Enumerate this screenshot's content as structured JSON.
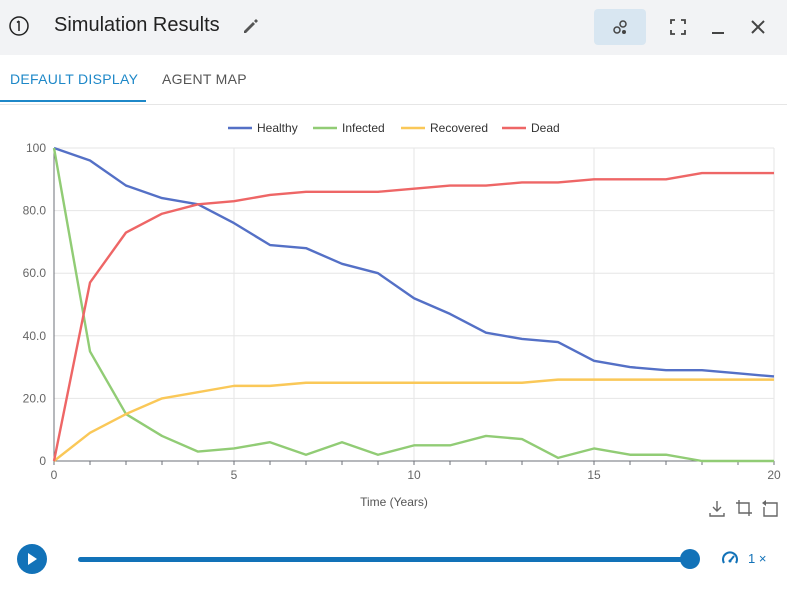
{
  "header": {
    "title": "Simulation Results",
    "info_icon": "info-circle-icon",
    "edit_icon": "pencil-icon",
    "buttons": [
      "scatter-icon",
      "fullscreen-icon",
      "minimize-icon",
      "close-icon"
    ]
  },
  "tabs": [
    {
      "label": "DEFAULT DISPLAY",
      "selected": true
    },
    {
      "label": "AGENT MAP",
      "selected": false
    }
  ],
  "player": {
    "play_icon": "play-icon",
    "progress": 1.0,
    "speed_icon": "speedometer-icon",
    "speed_label": "1 ×"
  },
  "toolbox": [
    "download-icon",
    "crop-icon",
    "reset-icon"
  ],
  "colors": {
    "accent": "#1e88c8",
    "healthy": "#5470c6",
    "infected": "#91cc75",
    "recovered": "#fac858",
    "dead": "#ee6666"
  },
  "chart_data": {
    "type": "line",
    "xlabel": "Time (Years)",
    "ylabel": "",
    "xlim": [
      0,
      20
    ],
    "ylim": [
      0,
      100
    ],
    "x_ticks": [
      "0",
      "5",
      "10",
      "15",
      "20"
    ],
    "y_ticks": [
      "0",
      "20.0",
      "40.0",
      "60.0",
      "80.0",
      "100"
    ],
    "grid": true,
    "legend_position": "top-center",
    "x": [
      0,
      1,
      2,
      3,
      4,
      5,
      6,
      7,
      8,
      9,
      10,
      11,
      12,
      13,
      14,
      15,
      16,
      17,
      18,
      19,
      20
    ],
    "series": [
      {
        "name": "Healthy",
        "color": "#5470c6",
        "values": [
          100,
          96,
          88,
          84,
          82,
          76,
          69,
          68,
          63,
          60,
          52,
          47,
          41,
          39,
          38,
          32,
          30,
          29,
          29,
          28,
          27
        ]
      },
      {
        "name": "Infected",
        "color": "#91cc75",
        "values": [
          100,
          35,
          15,
          8,
          3,
          4,
          6,
          2,
          6,
          2,
          5,
          5,
          8,
          7,
          1,
          4,
          2,
          2,
          0,
          0,
          0
        ]
      },
      {
        "name": "Recovered",
        "color": "#fac858",
        "values": [
          0,
          9,
          15,
          20,
          22,
          24,
          24,
          25,
          25,
          25,
          25,
          25,
          25,
          25,
          26,
          26,
          26,
          26,
          26,
          26,
          26
        ]
      },
      {
        "name": "Dead",
        "color": "#ee6666",
        "values": [
          0,
          57,
          73,
          79,
          82,
          83,
          85,
          86,
          86,
          86,
          87,
          88,
          88,
          89,
          89,
          90,
          90,
          90,
          92,
          92,
          92
        ]
      }
    ]
  }
}
